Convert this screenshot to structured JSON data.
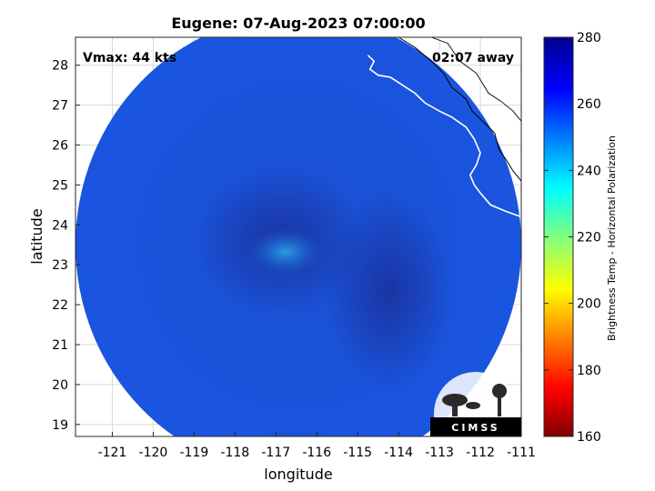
{
  "chart_data": {
    "type": "heatmap",
    "title": "Eugene: 07-Aug-2023 07:00:00",
    "xlabel": "longitude",
    "ylabel": "latitude",
    "xlim": [
      -121.9,
      -111
    ],
    "ylim": [
      18.7,
      28.7
    ],
    "x_ticks": [
      -121,
      -120,
      -119,
      -118,
      -117,
      -116,
      -115,
      -114,
      -113,
      -112,
      -111
    ],
    "y_ticks": [
      19,
      20,
      21,
      22,
      23,
      24,
      25,
      26,
      27,
      28
    ],
    "grid": true,
    "annotations": {
      "vmax": "Vmax: 44 kts",
      "away": "02:07 away"
    },
    "storm_center": {
      "lon": -116.9,
      "lat": 23.6
    },
    "swath": {
      "center_lon": -116.45,
      "center_lat": 23.5,
      "radius_deg": 5.45
    },
    "colorbar": {
      "label": "Brightness Temp - Horizontal Polarization",
      "min": 160,
      "max": 280,
      "ticks": [
        160,
        180,
        200,
        220,
        240,
        260,
        280
      ],
      "colormap": "jet"
    },
    "coastline_lonlat": [
      [
        -114.75,
        28.25
      ],
      [
        -114.6,
        28.1
      ],
      [
        -114.7,
        27.9
      ],
      [
        -114.5,
        27.75
      ],
      [
        -114.2,
        27.7
      ],
      [
        -113.9,
        27.5
      ],
      [
        -113.6,
        27.3
      ],
      [
        -113.35,
        27.05
      ],
      [
        -113.0,
        26.85
      ],
      [
        -112.7,
        26.7
      ],
      [
        -112.35,
        26.45
      ],
      [
        -112.15,
        26.15
      ],
      [
        -112.0,
        25.8
      ],
      [
        -112.1,
        25.5
      ],
      [
        -112.25,
        25.25
      ],
      [
        -112.15,
        25.0
      ],
      [
        -112.0,
        24.8
      ],
      [
        -111.75,
        24.5
      ],
      [
        -111.4,
        24.35
      ],
      [
        -111.0,
        24.2
      ]
    ],
    "gulf_coast_lonlat": [
      [
        -114.0,
        28.7
      ],
      [
        -113.6,
        28.45
      ],
      [
        -113.2,
        28.1
      ],
      [
        -112.9,
        27.8
      ],
      [
        -112.7,
        27.45
      ],
      [
        -112.35,
        27.15
      ],
      [
        -112.2,
        26.85
      ],
      [
        -111.9,
        26.55
      ],
      [
        -111.65,
        26.3
      ],
      [
        -111.55,
        25.9
      ],
      [
        -111.35,
        25.6
      ],
      [
        -111.2,
        25.35
      ],
      [
        -111.0,
        25.1
      ]
    ],
    "border_lonlat": [
      [
        -113.2,
        28.7
      ],
      [
        -112.8,
        28.55
      ],
      [
        -112.5,
        28.1
      ],
      [
        -112.1,
        27.8
      ],
      [
        -111.8,
        27.3
      ],
      [
        -111.5,
        27.1
      ],
      [
        -111.2,
        26.85
      ],
      [
        -111.0,
        26.6
      ]
    ],
    "logo_text": "CIMSS"
  }
}
